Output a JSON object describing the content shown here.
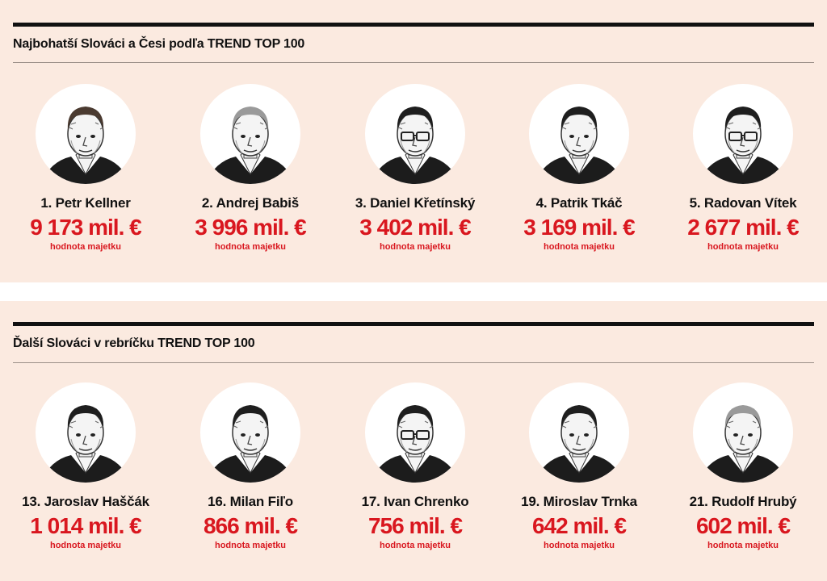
{
  "sections": [
    {
      "title": "Najbohatší Slováci a Česi podľa TREND TOP 100",
      "people": [
        {
          "name": "1. Petr Kellner",
          "value": "9 173 mil. €",
          "label": "hodnota majetku",
          "hair": "brown",
          "glasses": false
        },
        {
          "name": "2. Andrej Babiš",
          "value": "3 996 mil. €",
          "label": "hodnota majetku",
          "hair": "grey",
          "glasses": false
        },
        {
          "name": "3. Daniel Křetínský",
          "value": "3 402 mil. €",
          "label": "hodnota majetku",
          "hair": "dark",
          "glasses": true
        },
        {
          "name": "4. Patrik Tkáč",
          "value": "3 169 mil. €",
          "label": "hodnota majetku",
          "hair": "dark",
          "glasses": false
        },
        {
          "name": "5. Radovan Vítek",
          "value": "2 677 mil. €",
          "label": "hodnota majetku",
          "hair": "dark",
          "glasses": true
        }
      ]
    },
    {
      "title": "Ďalší Slováci v rebríčku TREND TOP 100",
      "people": [
        {
          "name": "13. Jaroslav Haščák",
          "value": "1 014 mil. €",
          "label": "hodnota majetku",
          "hair": "dark",
          "glasses": false
        },
        {
          "name": "16. Milan Fiľo",
          "value": "866 mil. €",
          "label": "hodnota majetku",
          "hair": "dark",
          "glasses": false
        },
        {
          "name": "17. Ivan Chrenko",
          "value": "756 mil. €",
          "label": "hodnota majetku",
          "hair": "dark",
          "glasses": true
        },
        {
          "name": "19. Miroslav Trnka",
          "value": "642 mil. €",
          "label": "hodnota majetku",
          "hair": "dark",
          "glasses": false
        },
        {
          "name": "21. Rudolf Hrubý",
          "value": "602 mil. €",
          "label": "hodnota majetku",
          "hair": "grey",
          "glasses": false
        }
      ]
    }
  ],
  "colors": {
    "background": "#fbeae0",
    "value_red": "#d9171f",
    "ink": "#111111"
  }
}
